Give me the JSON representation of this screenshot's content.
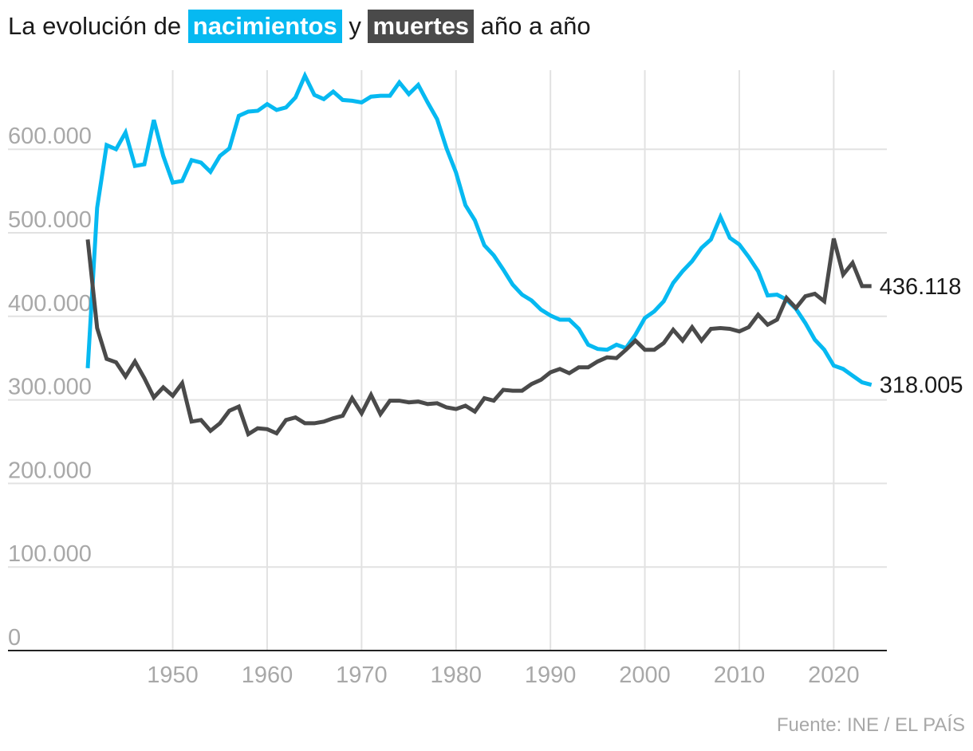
{
  "title": {
    "prefix": "La evolución de",
    "births_word": "nacimientos",
    "connector": "y",
    "deaths_word": "muertes",
    "suffix": "año a año"
  },
  "source": "Fuente: INE / EL PAÍS",
  "colors": {
    "births": "#06b9f1",
    "deaths": "#4a4a4a",
    "grid": "#e2e2e2",
    "axis": "#222222",
    "tick_text": "#a8a8a8"
  },
  "chart_data": {
    "type": "line",
    "title": "La evolución de nacimientos y muertes año a año",
    "xlabel": "",
    "ylabel": "",
    "xlim": [
      1941,
      2024
    ],
    "ylim": [
      0,
      690000
    ],
    "grid": true,
    "x_ticks": [
      1950,
      1960,
      1970,
      1980,
      1990,
      2000,
      2010,
      2020
    ],
    "y_ticks": [
      {
        "value": 0,
        "label": "0"
      },
      {
        "value": 100000,
        "label": "100.000"
      },
      {
        "value": 200000,
        "label": "200.000"
      },
      {
        "value": 300000,
        "label": "300.000"
      },
      {
        "value": 400000,
        "label": "400.000"
      },
      {
        "value": 500000,
        "label": "500.000"
      },
      {
        "value": 600000,
        "label": "600.000"
      }
    ],
    "x": [
      1941,
      1942,
      1943,
      1944,
      1945,
      1946,
      1947,
      1948,
      1949,
      1950,
      1951,
      1952,
      1953,
      1954,
      1955,
      1956,
      1957,
      1958,
      1959,
      1960,
      1961,
      1962,
      1963,
      1964,
      1965,
      1966,
      1967,
      1968,
      1969,
      1970,
      1971,
      1972,
      1973,
      1974,
      1975,
      1976,
      1977,
      1978,
      1979,
      1980,
      1981,
      1982,
      1983,
      1984,
      1985,
      1986,
      1987,
      1988,
      1989,
      1990,
      1991,
      1992,
      1993,
      1994,
      1995,
      1996,
      1997,
      1998,
      1999,
      2000,
      2001,
      2002,
      2003,
      2004,
      2005,
      2006,
      2007,
      2008,
      2009,
      2010,
      2011,
      2012,
      2013,
      2014,
      2015,
      2016,
      2017,
      2018,
      2019,
      2020,
      2021,
      2022,
      2023,
      2024
    ],
    "series": [
      {
        "name": "nacimientos",
        "color": "#06b9f1",
        "end_label": "318.005",
        "values": [
          338000,
          530000,
          605000,
          600000,
          620000,
          580000,
          582000,
          635000,
          592000,
          560000,
          562000,
          587000,
          584000,
          573000,
          592000,
          601000,
          640000,
          645000,
          646000,
          654000,
          647000,
          650000,
          662000,
          688000,
          665000,
          660000,
          669000,
          659000,
          658000,
          656000,
          663000,
          664000,
          664000,
          680000,
          666000,
          677000,
          656000,
          636000,
          601000,
          572000,
          533000,
          515000,
          485000,
          473000,
          456000,
          438000,
          426000,
          419000,
          408000,
          401000,
          396000,
          396000,
          385000,
          366000,
          361000,
          360000,
          366000,
          362000,
          378000,
          398000,
          406000,
          418000,
          440000,
          454000,
          466000,
          482000,
          492000,
          519000,
          494000,
          486000,
          471000,
          454000,
          425000,
          426000,
          420000,
          409000,
          392000,
          372000,
          360000,
          341000,
          337000,
          329000,
          321000,
          318005
        ]
      },
      {
        "name": "muertes",
        "color": "#4a4a4a",
        "end_label": "436.118",
        "values": [
          492000,
          386000,
          349000,
          345000,
          328000,
          346000,
          326000,
          303000,
          315000,
          305000,
          320000,
          274000,
          276000,
          263000,
          272000,
          287000,
          292000,
          259000,
          266000,
          265000,
          260000,
          276000,
          279000,
          272000,
          272000,
          274000,
          278000,
          281000,
          302000,
          284000,
          306000,
          283000,
          299000,
          299000,
          297000,
          298000,
          295000,
          296000,
          291000,
          289000,
          293000,
          286000,
          302000,
          299000,
          312000,
          311000,
          311000,
          319000,
          324000,
          333000,
          337000,
          332000,
          339000,
          339000,
          346000,
          351000,
          350000,
          360000,
          371000,
          360000,
          360000,
          368000,
          384000,
          371000,
          387000,
          371000,
          385000,
          386000,
          385000,
          382000,
          387000,
          402000,
          390000,
          396000,
          422000,
          410000,
          424000,
          427000,
          418000,
          493000,
          450000,
          464000,
          436118,
          436118
        ]
      }
    ]
  }
}
